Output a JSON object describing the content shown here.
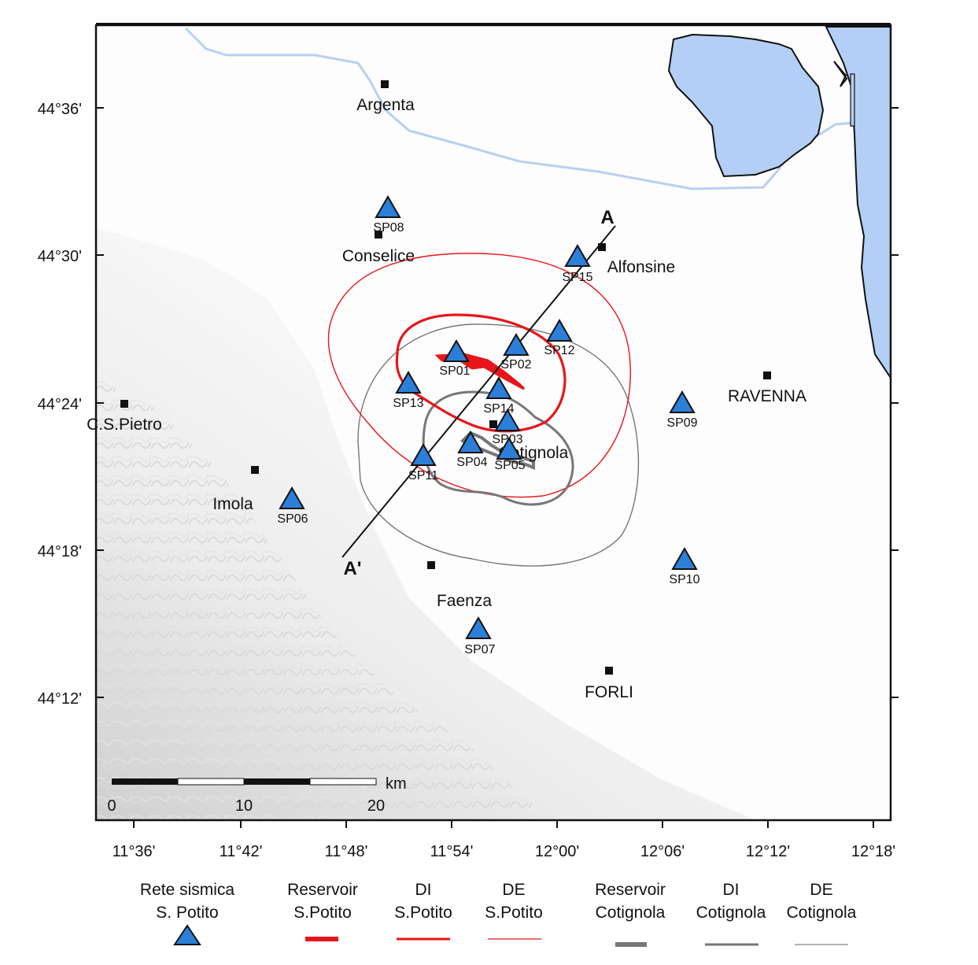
{
  "map": {
    "lat_ticks": [
      "44°36'",
      "44°30'",
      "44°24'",
      "44°18'",
      "44°12'"
    ],
    "lon_ticks": [
      "11°36'",
      "11°42'",
      "11°48'",
      "11°54'",
      "12°00'",
      "12°06'",
      "12°12'",
      "12°18'"
    ],
    "towns": [
      {
        "name": "Argenta"
      },
      {
        "name": "Conselice"
      },
      {
        "name": "Alfonsine"
      },
      {
        "name": "C.S.Pietro"
      },
      {
        "name": "Imola"
      },
      {
        "name": "RAVENNA"
      },
      {
        "name": "Cotignola"
      },
      {
        "name": "Faenza"
      },
      {
        "name": "FORLI"
      }
    ],
    "stations": [
      "SP01",
      "SP02",
      "SP03",
      "SP04",
      "SP05",
      "SP06",
      "SP07",
      "SP08",
      "SP09",
      "SP10",
      "SP11",
      "SP12",
      "SP13",
      "SP14",
      "SP15"
    ],
    "section": {
      "start_label": "A",
      "end_label": "A'"
    },
    "scale_bar": {
      "unit": "km",
      "labels": [
        "0",
        "10",
        "20"
      ]
    }
  },
  "legend": [
    {
      "line1": "Rete sismica",
      "line2": "S. Potito"
    },
    {
      "line1": "Reservoir",
      "line2": "S.Potito"
    },
    {
      "line1": "DI",
      "line2": "S.Potito"
    },
    {
      "line1": "DE",
      "line2": "S.Potito"
    },
    {
      "line1": "Reservoir",
      "line2": "Cotignola"
    },
    {
      "line1": "DI",
      "line2": "Cotignola"
    },
    {
      "line1": "DE",
      "line2": "Cotignola"
    }
  ],
  "colors": {
    "water": "#b3cff5",
    "river": "#b8d0f0",
    "station": "#2b7fd9",
    "s_potito": "#e8151b",
    "cotignola": "#777777"
  }
}
